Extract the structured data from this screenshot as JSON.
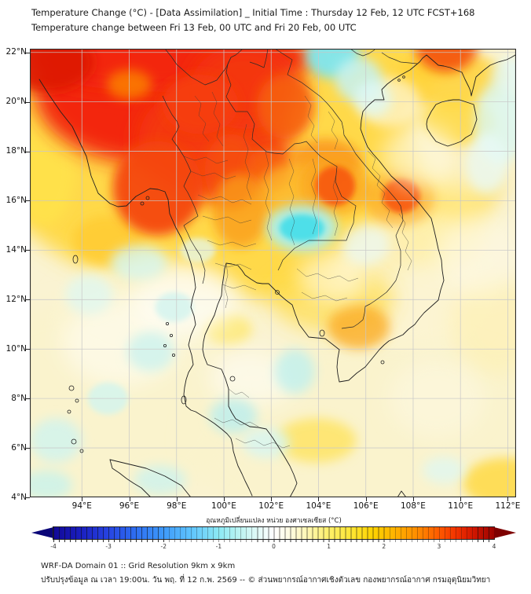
{
  "header": {
    "line1": "Temperature Change (°C) - [Data Assimilation] _ Initial Time : Thursday 12 Feb, 12 UTC FCST+168",
    "line2": "Temperature change between Fri 13 Feb, 00 UTC and Fri 20 Feb, 00 UTC"
  },
  "footer": {
    "line1": "WRF-DA Domain 01 :: Grid Resolution 9km x 9km",
    "line2": "ปรับปรุงข้อมูล ณ เวลา 19:00น. วัน พฤ. ที่ 12 ก.พ. 2569 -- © ส่วนพยากรณ์อากาศเชิงตัวเลข กองพยากรณ์อากาศ กรมอุตุนิยมวิทยา"
  },
  "chart_data": {
    "type": "heatmap",
    "subtype": "filled-contour-geographic-map",
    "title": "Temperature Change (°C) - [Data Assimilation] _ Initial Time : Thursday 12 Feb, 12 UTC FCST+168",
    "subtitle": "Temperature change between Fri 13 Feb, 00 UTC and Fri 20 Feb, 00 UTC",
    "grid_note": "WRF-DA Domain 01 :: Grid Resolution 9km x 9km",
    "extent": {
      "lon_min": 91.8,
      "lon_max": 112.35,
      "lat_min": 4.0,
      "lat_max": 22.15
    },
    "grid": true,
    "lon_ticks": {
      "values": [
        94,
        96,
        98,
        100,
        102,
        104,
        106,
        108,
        110,
        112
      ],
      "labels": [
        "94°E",
        "96°E",
        "98°E",
        "100°E",
        "102°E",
        "104°E",
        "106°E",
        "108°E",
        "110°E",
        "112°E"
      ]
    },
    "lat_ticks": {
      "values": [
        22,
        20,
        18,
        16,
        14,
        12,
        10,
        8,
        6,
        4
      ],
      "labels": [
        "22°N",
        "20°N",
        "18°N",
        "16°N",
        "14°N",
        "12°N",
        "10°N",
        "8°N",
        "6°N",
        "4°N"
      ]
    },
    "colorbar": {
      "label": "อุณหภูมิเปลี่ยนแปลง หน่วย องศาเซลเซียส (°C)",
      "unit": "°C",
      "range": [
        -4,
        4
      ],
      "ticks": [
        -4,
        -3,
        -2,
        -1,
        0,
        1,
        2,
        3,
        4
      ],
      "segment_step": 0.1,
      "extended_both_ends": true,
      "left_arrow_color": "#0A0578",
      "right_arrow_color": "#7E0000",
      "stops": [
        [
          -4,
          "#120897"
        ],
        [
          -3.5,
          "#1A1FC0"
        ],
        [
          -3,
          "#2744E3"
        ],
        [
          -2.5,
          "#2E6FF2"
        ],
        [
          -2,
          "#3E9AFA"
        ],
        [
          -1.5,
          "#5FC4FE"
        ],
        [
          -1,
          "#8CE9F4"
        ],
        [
          -0.6,
          "#BEF4F2"
        ],
        [
          -0.3,
          "#E0FAF7"
        ],
        [
          0,
          "#FFFFFF"
        ],
        [
          0.3,
          "#FFFBE0"
        ],
        [
          0.6,
          "#FFF7B5"
        ],
        [
          1,
          "#FFF06A"
        ],
        [
          1.4,
          "#FFE636"
        ],
        [
          1.8,
          "#FFD200"
        ],
        [
          2.2,
          "#FFB200"
        ],
        [
          2.6,
          "#FF8C00"
        ],
        [
          3,
          "#FF5A00"
        ],
        [
          3.3,
          "#F23400"
        ],
        [
          3.6,
          "#D41800"
        ],
        [
          4,
          "#9C0300"
        ]
      ]
    },
    "base_fill": "#FAF3D2",
    "anomaly_features": [
      {
        "area": "NW corner - N Myanmar / far N Thailand broad warming",
        "lon": 96.5,
        "lat": 20.3,
        "value_c": 4.0
      },
      {
        "area": "Myanmar coast warm tongue",
        "lon": 97.2,
        "lat": 16.5,
        "value_c": 3.5
      },
      {
        "area": "N Laos warm spot",
        "lon": 102.6,
        "lat": 19.8,
        "value_c": 3.0
      },
      {
        "area": "Mekong / NE Thailand warm spot",
        "lon": 104.7,
        "lat": 16.6,
        "value_c": 3.0
      },
      {
        "area": "Lao-Vietnam border warm spot",
        "lon": 107.5,
        "lat": 16.2,
        "value_c": 3.0
      },
      {
        "area": "Guangxi coast warm spot (top edge)",
        "lon": 109.4,
        "lat": 22.0,
        "value_c": 3.0
      },
      {
        "area": "Gulf of Tonkin cool patch",
        "lon": 104.6,
        "lat": 21.9,
        "value_c": -1.0
      },
      {
        "area": "S Isaan / N Cambodia cool spot",
        "lon": 103.3,
        "lat": 14.9,
        "value_c": -1.5
      },
      {
        "area": "Mekong Delta mild warm",
        "lon": 105.7,
        "lat": 10.9,
        "value_c": 1.5
      },
      {
        "area": "Peninsula and seas near neutral",
        "lon": 100.0,
        "lat": 8.0,
        "value_c": 0.3
      }
    ],
    "field_blobs": [
      [
        101.0,
        18.0,
        11.0,
        6.0,
        "#FFD840",
        0.95,
        "lg"
      ],
      [
        106.5,
        6.3,
        8.0,
        4.2,
        "#FAF3CC",
        0.92,
        "lg"
      ],
      [
        94.3,
        7.5,
        6.0,
        4.4,
        "#FAF3CC",
        0.92,
        "lg"
      ],
      [
        97.0,
        11.3,
        4.2,
        2.3,
        "#FBF4D0",
        0.85,
        "lg"
      ],
      [
        110.5,
        18.8,
        2.6,
        2.6,
        "#FBF3CF",
        0.8,
        "lg"
      ],
      [
        108.0,
        12.8,
        3.4,
        2.8,
        "#FCF5D2",
        0.8,
        "lg"
      ],
      [
        104.6,
        12.0,
        2.6,
        1.3,
        "#FFD83C",
        0.65,
        "lg"
      ],
      [
        109.6,
        20.9,
        2.4,
        1.1,
        "#FFD236",
        0.8,
        "md"
      ],
      [
        109.9,
        19.2,
        1.5,
        1.0,
        "#FFD83C",
        0.8,
        "md"
      ],
      [
        111.9,
        4.6,
        1.8,
        1.0,
        "#FFD83C",
        0.8,
        "md"
      ],
      [
        103.9,
        6.3,
        1.7,
        0.9,
        "#FFE14E",
        0.7,
        "md"
      ],
      [
        100.2,
        10.8,
        1.0,
        0.6,
        "#FFE451",
        0.6,
        "md"
      ],
      [
        95.1,
        14.4,
        1.5,
        1.0,
        "#FFCB32",
        0.85,
        "md"
      ],
      [
        92.4,
        17.3,
        1.3,
        2.3,
        "#FFE24A",
        0.9,
        "md"
      ],
      [
        109.2,
        15.2,
        2.0,
        1.9,
        "#FFF0A2",
        0.55,
        "lg"
      ],
      [
        111.6,
        11.0,
        2.0,
        2.0,
        "#FFEFA8",
        0.5,
        "lg"
      ],
      [
        96.8,
        20.4,
        4.8,
        2.9,
        "#F3260A",
        1,
        "lg"
      ],
      [
        97.6,
        21.8,
        6.2,
        1.4,
        "#F3260A",
        1,
        "lg"
      ],
      [
        99.6,
        18.4,
        3.2,
        2.4,
        "#F43A0C",
        0.95,
        "lg"
      ],
      [
        100.9,
        20.6,
        2.3,
        1.7,
        "#F43609",
        0.95,
        "lg"
      ],
      [
        97.2,
        16.5,
        1.9,
        1.9,
        "#F4470F",
        0.95,
        "md"
      ],
      [
        92.5,
        21.6,
        2.0,
        1.2,
        "#DD1403",
        0.9,
        "md"
      ],
      [
        96.0,
        20.7,
        0.95,
        0.6,
        "#FB7A07",
        0.9,
        "md"
      ],
      [
        99.0,
        19.9,
        1.6,
        1.2,
        "#F63E0B",
        0.9,
        "md"
      ],
      [
        102.6,
        19.8,
        1.2,
        1.3,
        "#F65E11",
        0.9,
        "md"
      ],
      [
        100.3,
        17.2,
        1.1,
        1.5,
        "#F64E0E",
        0.9,
        "md"
      ],
      [
        101.9,
        17.3,
        0.95,
        0.85,
        "#F8600F",
        0.85,
        "md"
      ],
      [
        104.3,
        17.6,
        1.5,
        0.9,
        "#FA9018",
        0.8,
        "md"
      ],
      [
        103.2,
        16.4,
        1.8,
        1.1,
        "#FCB62B",
        0.8,
        "md"
      ],
      [
        104.7,
        16.6,
        1.5,
        1.2,
        "#FBA41F",
        0.7,
        "md"
      ],
      [
        104.7,
        16.6,
        0.85,
        0.8,
        "#F7570D",
        0.9,
        "sm"
      ],
      [
        107.4,
        16.1,
        1.5,
        1.1,
        "#FBA41F",
        0.6,
        "md"
      ],
      [
        107.5,
        16.2,
        0.8,
        0.7,
        "#F7570D",
        0.9,
        "sm"
      ],
      [
        109.4,
        22.2,
        1.3,
        1.0,
        "#F4560B",
        0.95,
        "md"
      ],
      [
        100.7,
        15.6,
        1.2,
        1.5,
        "#FA9C1C",
        0.8,
        "md"
      ],
      [
        105.7,
        10.9,
        1.3,
        0.9,
        "#FBAC25",
        0.8,
        "md"
      ],
      [
        98.3,
        11.9,
        2.2,
        1.4,
        "#FFFFFF",
        0.6,
        "lg"
      ],
      [
        95.6,
        10.2,
        2.4,
        1.7,
        "#FFFEF4",
        0.55,
        "lg"
      ],
      [
        101.2,
        8.8,
        1.8,
        1.1,
        "#FFFFFF",
        0.5,
        "lg"
      ],
      [
        104.6,
        12.9,
        1.5,
        1.0,
        "#FFFEF0",
        0.6,
        "lg"
      ],
      [
        108.3,
        17.8,
        1.6,
        1.3,
        "#FEFBE8",
        0.6,
        "lg"
      ],
      [
        110.8,
        13.8,
        1.8,
        1.6,
        "#FDFAE8",
        0.55,
        "lg"
      ],
      [
        107.0,
        20.0,
        1.3,
        1.0,
        "#FDFBEE",
        0.6,
        "md"
      ],
      [
        109.0,
        8.0,
        2.0,
        1.6,
        "#FDF9E6",
        0.5,
        "lg"
      ],
      [
        104.6,
        21.9,
        1.15,
        0.95,
        "#7FE6EF",
        0.95,
        "md"
      ],
      [
        105.7,
        20.9,
        1.0,
        0.9,
        "#C6F2F3",
        0.85,
        "md"
      ],
      [
        106.3,
        20.1,
        0.8,
        0.7,
        "#DFF8F6",
        0.8,
        "md"
      ],
      [
        111.7,
        19.2,
        1.1,
        1.7,
        "#D9F7F4",
        0.8,
        "md"
      ],
      [
        112.1,
        21.1,
        0.8,
        0.7,
        "#E4F9F7",
        0.8,
        "md"
      ],
      [
        111.1,
        17.5,
        0.9,
        1.2,
        "#E8FAF7",
        0.75,
        "md"
      ],
      [
        103.3,
        14.9,
        1.5,
        0.95,
        "#A9EFF2",
        0.9,
        "md"
      ],
      [
        103.3,
        14.9,
        0.95,
        0.55,
        "#4ADEE9",
        0.95,
        "sm"
      ],
      [
        96.4,
        13.5,
        1.2,
        0.7,
        "#D6F6F1",
        0.8,
        "md"
      ],
      [
        94.3,
        12.2,
        1.0,
        0.8,
        "#DDF7F2",
        0.75,
        "md"
      ],
      [
        97.9,
        11.7,
        0.8,
        0.6,
        "#D2F4EF",
        0.8,
        "sm"
      ],
      [
        96.9,
        9.9,
        1.0,
        0.8,
        "#CCF3EE",
        0.8,
        "md"
      ],
      [
        95.1,
        8.0,
        0.85,
        0.65,
        "#D2F5EF",
        0.8,
        "sm"
      ],
      [
        92.9,
        6.3,
        1.1,
        0.9,
        "#CFF4EF",
        0.8,
        "md"
      ],
      [
        92.5,
        4.5,
        1.1,
        0.6,
        "#C8F2EC",
        0.8,
        "md"
      ],
      [
        97.3,
        4.7,
        1.1,
        0.6,
        "#CDF3EE",
        0.8,
        "md"
      ],
      [
        100.4,
        7.3,
        1.0,
        0.7,
        "#BEEFEC",
        0.85,
        "md"
      ],
      [
        101.8,
        6.2,
        1.0,
        0.6,
        "#D6F6F2",
        0.8,
        "md"
      ],
      [
        103.0,
        9.1,
        0.85,
        0.9,
        "#BFF0EE",
        0.8,
        "md"
      ],
      [
        109.3,
        5.1,
        0.9,
        0.55,
        "#DDF7F3",
        0.75,
        "md"
      ],
      [
        106.0,
        14.2,
        1.0,
        0.8,
        "#E9FAF6",
        0.7,
        "md"
      ],
      [
        98.9,
        14.0,
        0.75,
        0.5,
        "#E2F8F4",
        0.7,
        "sm"
      ]
    ]
  }
}
